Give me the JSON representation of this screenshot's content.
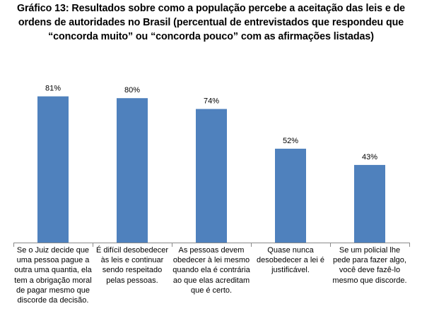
{
  "chart_data": {
    "type": "bar",
    "title_lines": [
      "Gráfico 13: Resultados sobre como a população percebe a aceitação das leis e de",
      "ordens de autoridades no Brasil (percentual de entrevistados que respondeu que",
      "“concorda muito” ou “concorda pouco” com as afirmações listadas)"
    ],
    "categories": [
      "Se o Juiz decide que uma pessoa pague a outra uma quantia, ela tem a obrigação moral de pagar mesmo que discorde da decisão.",
      "É difícil desobedecer às leis e continuar sendo respeitado pelas pessoas.",
      "As pessoas devem obedecer à lei mesmo quando ela é contrária ao que elas acreditam que é certo.",
      "Quase nunca desobedecer a lei é justificável.",
      "Se um policial lhe pede para fazer algo, você deve fazê-lo mesmo que discorde."
    ],
    "values": [
      81,
      80,
      74,
      52,
      43
    ],
    "value_labels": [
      "81%",
      "80%",
      "74%",
      "52%",
      "43%"
    ],
    "ylim": [
      0,
      100
    ],
    "bar_color": "#4f81bd",
    "grid": false,
    "legend": "none"
  }
}
